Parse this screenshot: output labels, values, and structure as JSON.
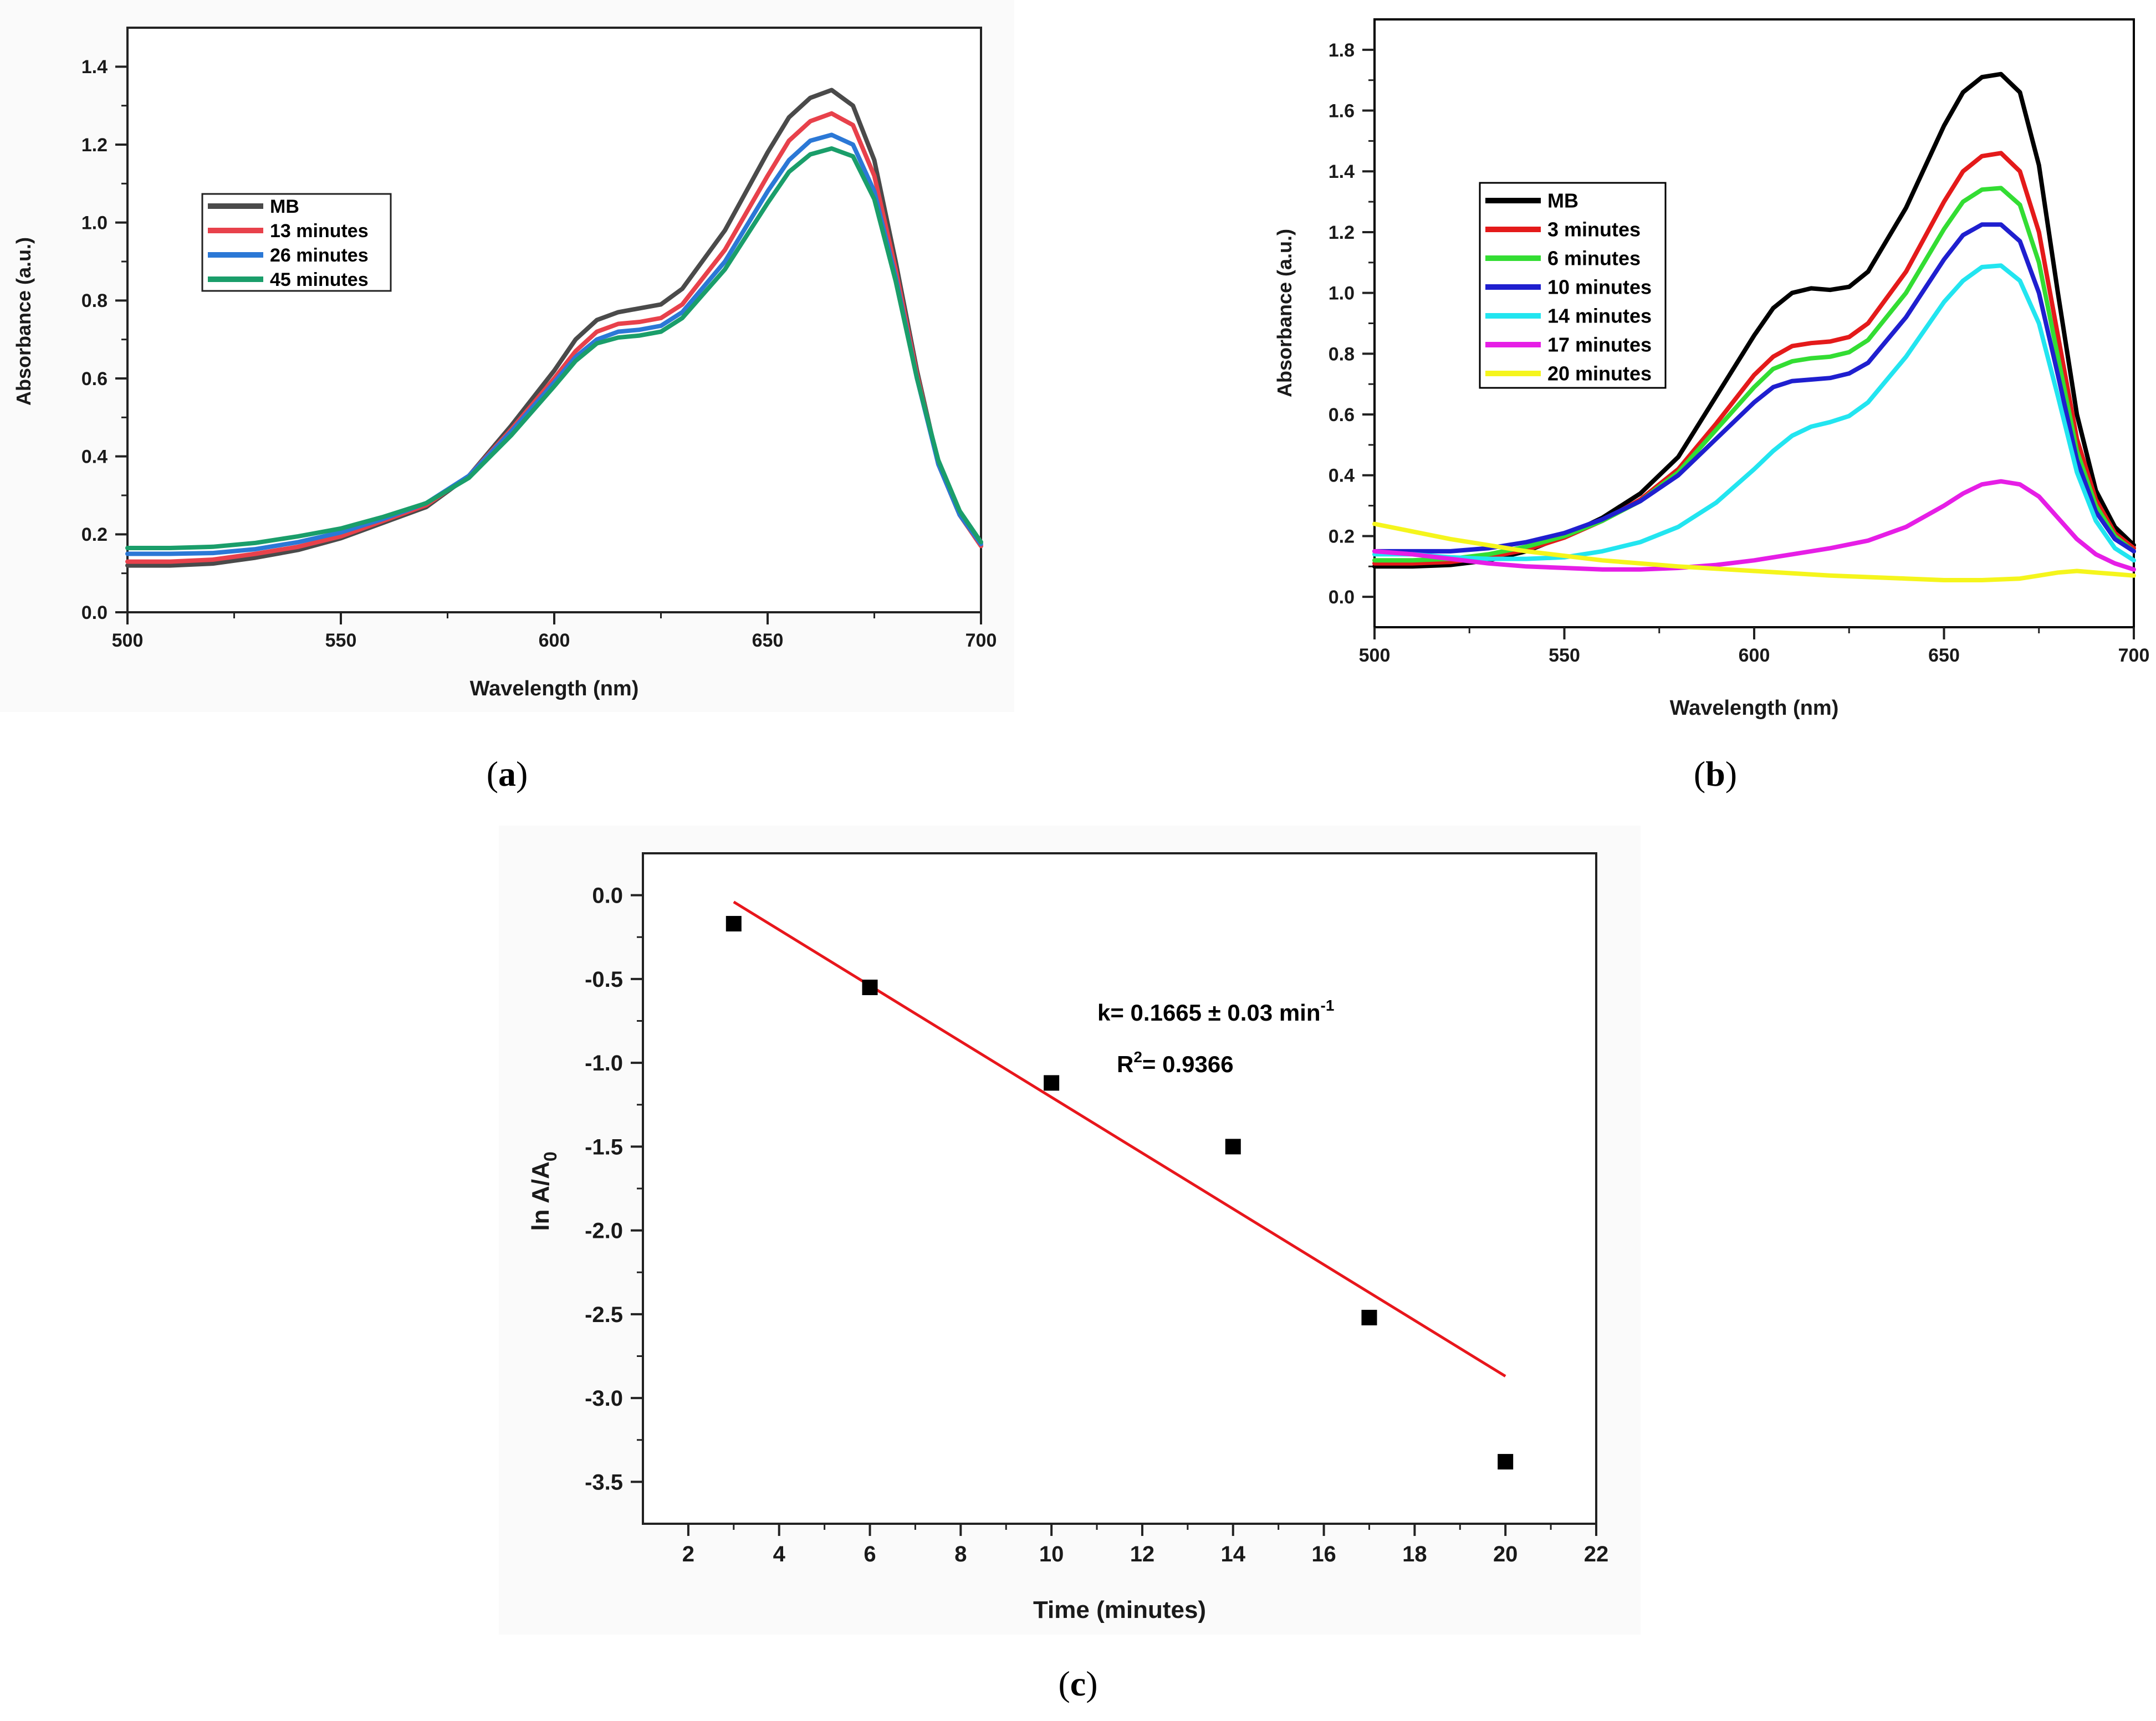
{
  "chart_data": [
    {
      "id": "a",
      "type": "line",
      "panel_label": "a",
      "xlabel": "Wavelength (nm)",
      "ylabel": "Absorbance (a.u.)",
      "xlim": [
        500,
        700
      ],
      "ylim": [
        0,
        1.5
      ],
      "xticks": [
        500,
        550,
        600,
        650,
        700
      ],
      "yticks": [
        0.0,
        0.2,
        0.4,
        0.6,
        0.8,
        1.0,
        1.2,
        1.4
      ],
      "xtick_labels": [
        "500",
        "550",
        "600",
        "650",
        "700"
      ],
      "ytick_labels": [
        "0.0",
        "0.2",
        "0.4",
        "0.6",
        "0.8",
        "1.0",
        "1.2",
        "1.4"
      ],
      "legend_position": "middle-left",
      "series": [
        {
          "name": "MB",
          "color": "#4a4a4a",
          "x": [
            500,
            510,
            520,
            530,
            540,
            550,
            560,
            570,
            580,
            590,
            600,
            605,
            610,
            615,
            620,
            625,
            630,
            640,
            650,
            655,
            660,
            665,
            670,
            675,
            680,
            685,
            690,
            695,
            700
          ],
          "y": [
            0.12,
            0.12,
            0.125,
            0.14,
            0.16,
            0.19,
            0.23,
            0.27,
            0.35,
            0.48,
            0.62,
            0.7,
            0.75,
            0.77,
            0.78,
            0.79,
            0.83,
            0.98,
            1.18,
            1.27,
            1.32,
            1.34,
            1.3,
            1.16,
            0.9,
            0.62,
            0.38,
            0.25,
            0.17
          ]
        },
        {
          "name": "13 minutes",
          "color": "#e8414b",
          "x": [
            500,
            510,
            520,
            530,
            540,
            550,
            560,
            570,
            580,
            590,
            600,
            605,
            610,
            615,
            620,
            625,
            630,
            640,
            650,
            655,
            660,
            665,
            670,
            675,
            680,
            685,
            690,
            695,
            700
          ],
          "y": [
            0.13,
            0.13,
            0.135,
            0.15,
            0.168,
            0.195,
            0.235,
            0.275,
            0.35,
            0.47,
            0.6,
            0.67,
            0.72,
            0.74,
            0.745,
            0.755,
            0.79,
            0.93,
            1.12,
            1.21,
            1.26,
            1.28,
            1.25,
            1.12,
            0.88,
            0.61,
            0.38,
            0.25,
            0.17
          ]
        },
        {
          "name": "26 minutes",
          "color": "#2b78d6",
          "x": [
            500,
            510,
            520,
            530,
            540,
            550,
            560,
            570,
            580,
            590,
            600,
            605,
            610,
            615,
            620,
            625,
            630,
            640,
            650,
            655,
            660,
            665,
            670,
            675,
            680,
            685,
            690,
            695,
            700
          ],
          "y": [
            0.15,
            0.15,
            0.152,
            0.162,
            0.18,
            0.205,
            0.24,
            0.28,
            0.35,
            0.465,
            0.59,
            0.655,
            0.7,
            0.72,
            0.725,
            0.735,
            0.77,
            0.9,
            1.08,
            1.16,
            1.21,
            1.225,
            1.2,
            1.08,
            0.86,
            0.6,
            0.38,
            0.25,
            0.175
          ]
        },
        {
          "name": "45 minutes",
          "color": "#1a9e6a",
          "x": [
            500,
            510,
            520,
            530,
            540,
            550,
            560,
            570,
            580,
            590,
            600,
            605,
            610,
            615,
            620,
            625,
            630,
            640,
            650,
            655,
            660,
            665,
            670,
            675,
            680,
            685,
            690,
            695,
            700
          ],
          "y": [
            0.165,
            0.165,
            0.168,
            0.178,
            0.195,
            0.215,
            0.245,
            0.28,
            0.345,
            0.455,
            0.58,
            0.645,
            0.69,
            0.705,
            0.71,
            0.72,
            0.755,
            0.88,
            1.05,
            1.13,
            1.175,
            1.19,
            1.17,
            1.06,
            0.85,
            0.6,
            0.39,
            0.26,
            0.18
          ]
        }
      ]
    },
    {
      "id": "b",
      "type": "line",
      "panel_label": "b",
      "xlabel": "Wavelength (nm)",
      "ylabel": "Absorbance (a.u.)",
      "xlim": [
        500,
        700
      ],
      "ylim": [
        -0.1,
        1.9
      ],
      "xticks": [
        500,
        550,
        600,
        650,
        700
      ],
      "yticks": [
        0.0,
        0.2,
        0.4,
        0.6,
        0.8,
        1.0,
        1.2,
        1.4,
        1.6,
        1.8
      ],
      "xtick_labels": [
        "500",
        "550",
        "600",
        "650",
        "700"
      ],
      "ytick_labels": [
        "0.0",
        "0.2",
        "0.4",
        "0.6",
        "0.8",
        "1.0",
        "1.2",
        "1.4",
        "1.6",
        "1.8"
      ],
      "legend_position": "middle-left",
      "series": [
        {
          "name": "MB",
          "color": "#000000",
          "x": [
            500,
            510,
            520,
            530,
            540,
            550,
            560,
            570,
            580,
            590,
            600,
            605,
            610,
            615,
            620,
            625,
            630,
            640,
            650,
            655,
            660,
            665,
            670,
            675,
            680,
            685,
            690,
            695,
            700
          ],
          "y": [
            0.1,
            0.1,
            0.105,
            0.12,
            0.15,
            0.2,
            0.26,
            0.34,
            0.46,
            0.66,
            0.86,
            0.95,
            1.0,
            1.015,
            1.01,
            1.02,
            1.07,
            1.28,
            1.55,
            1.66,
            1.71,
            1.72,
            1.66,
            1.42,
            1.0,
            0.6,
            0.35,
            0.23,
            0.17
          ]
        },
        {
          "name": "3 minutes",
          "color": "#e41a1a",
          "x": [
            500,
            510,
            520,
            530,
            540,
            550,
            560,
            570,
            580,
            590,
            600,
            605,
            610,
            615,
            620,
            625,
            630,
            640,
            650,
            655,
            660,
            665,
            670,
            675,
            680,
            685,
            690,
            695,
            700
          ],
          "y": [
            0.11,
            0.11,
            0.115,
            0.13,
            0.155,
            0.195,
            0.25,
            0.32,
            0.42,
            0.57,
            0.73,
            0.79,
            0.825,
            0.835,
            0.84,
            0.855,
            0.9,
            1.07,
            1.3,
            1.4,
            1.45,
            1.46,
            1.4,
            1.2,
            0.86,
            0.52,
            0.32,
            0.21,
            0.16
          ]
        },
        {
          "name": "6 minutes",
          "color": "#33dd33",
          "x": [
            500,
            510,
            520,
            530,
            540,
            550,
            560,
            570,
            580,
            590,
            600,
            605,
            610,
            615,
            620,
            625,
            630,
            640,
            650,
            655,
            660,
            665,
            670,
            675,
            680,
            685,
            690,
            695,
            700
          ],
          "y": [
            0.12,
            0.12,
            0.125,
            0.14,
            0.165,
            0.2,
            0.25,
            0.315,
            0.41,
            0.55,
            0.69,
            0.75,
            0.775,
            0.785,
            0.79,
            0.805,
            0.845,
            1.0,
            1.21,
            1.3,
            1.34,
            1.345,
            1.29,
            1.1,
            0.79,
            0.48,
            0.3,
            0.2,
            0.15
          ]
        },
        {
          "name": "10 minutes",
          "color": "#1f1fcf",
          "x": [
            500,
            510,
            520,
            530,
            540,
            550,
            560,
            570,
            580,
            590,
            600,
            605,
            610,
            615,
            620,
            625,
            630,
            640,
            650,
            655,
            660,
            665,
            670,
            675,
            680,
            685,
            690,
            695,
            700
          ],
          "y": [
            0.15,
            0.15,
            0.15,
            0.16,
            0.18,
            0.21,
            0.255,
            0.315,
            0.4,
            0.52,
            0.64,
            0.69,
            0.71,
            0.715,
            0.72,
            0.735,
            0.77,
            0.92,
            1.11,
            1.19,
            1.225,
            1.225,
            1.17,
            1.0,
            0.73,
            0.45,
            0.28,
            0.19,
            0.15
          ]
        },
        {
          "name": "14 minutes",
          "color": "#22e5f0",
          "x": [
            500,
            510,
            520,
            530,
            540,
            550,
            560,
            570,
            580,
            590,
            600,
            605,
            610,
            615,
            620,
            625,
            630,
            640,
            650,
            655,
            660,
            665,
            670,
            675,
            680,
            685,
            690,
            695,
            700
          ],
          "y": [
            0.14,
            0.14,
            0.13,
            0.125,
            0.125,
            0.13,
            0.15,
            0.18,
            0.23,
            0.31,
            0.42,
            0.48,
            0.53,
            0.56,
            0.575,
            0.595,
            0.64,
            0.79,
            0.97,
            1.04,
            1.085,
            1.09,
            1.04,
            0.9,
            0.66,
            0.41,
            0.25,
            0.16,
            0.12
          ]
        },
        {
          "name": "17 minutes",
          "color": "#e61ee6",
          "x": [
            500,
            510,
            520,
            530,
            540,
            550,
            560,
            570,
            580,
            590,
            600,
            610,
            620,
            630,
            640,
            650,
            655,
            660,
            665,
            670,
            675,
            680,
            685,
            690,
            695,
            700
          ],
          "y": [
            0.15,
            0.14,
            0.125,
            0.11,
            0.1,
            0.095,
            0.09,
            0.09,
            0.095,
            0.105,
            0.12,
            0.14,
            0.16,
            0.185,
            0.23,
            0.3,
            0.34,
            0.37,
            0.38,
            0.37,
            0.33,
            0.26,
            0.19,
            0.14,
            0.11,
            0.09
          ]
        },
        {
          "name": "20 minutes",
          "color": "#f5f51c",
          "x": [
            500,
            520,
            540,
            560,
            580,
            600,
            620,
            640,
            650,
            660,
            670,
            675,
            680,
            685,
            690,
            695,
            700
          ],
          "y": [
            0.24,
            0.19,
            0.15,
            0.12,
            0.1,
            0.085,
            0.07,
            0.06,
            0.055,
            0.055,
            0.06,
            0.07,
            0.08,
            0.085,
            0.08,
            0.075,
            0.07
          ]
        }
      ]
    },
    {
      "id": "c",
      "type": "scatter",
      "panel_label": "c",
      "xlabel": "Time (minutes)",
      "ylabel_main": "ln A/A",
      "ylabel_sub": "0",
      "xlim": [
        1,
        22
      ],
      "ylim": [
        -3.75,
        0.25
      ],
      "xticks": [
        2,
        4,
        6,
        8,
        10,
        12,
        14,
        16,
        18,
        20,
        22
      ],
      "yticks": [
        0.0,
        -0.5,
        -1.0,
        -1.5,
        -2.0,
        -2.5,
        -3.0,
        -3.5
      ],
      "xtick_labels": [
        "2",
        "4",
        "6",
        "8",
        "10",
        "12",
        "14",
        "16",
        "18",
        "20",
        "22"
      ],
      "ytick_labels": [
        "0.0",
        "-0.5",
        "-1.0",
        "-1.5",
        "-2.0",
        "-2.5",
        "-3.0",
        "-3.5"
      ],
      "points": {
        "x": [
          3,
          6,
          10,
          14,
          17,
          20
        ],
        "y": [
          -0.17,
          -0.55,
          -1.12,
          -1.5,
          -2.52,
          -3.38
        ]
      },
      "fit": {
        "color": "#e8161c",
        "x": [
          3,
          20
        ],
        "y": [
          -0.04,
          -2.87
        ]
      },
      "annotation_k_prefix": "k= 0.1665 ± 0.03 min",
      "annotation_k_sup": "-1",
      "annotation_r2_prefix": "R",
      "annotation_r2_sup": "2",
      "annotation_r2_value": "= 0.9366"
    }
  ]
}
